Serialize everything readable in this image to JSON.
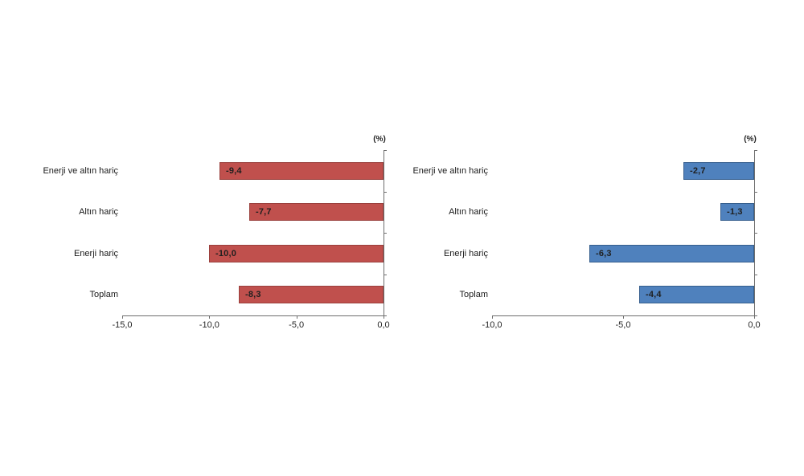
{
  "page": {
    "background_color": "#ffffff"
  },
  "chart_data": [
    {
      "type": "bar",
      "orientation": "horizontal",
      "title": "",
      "unit_label": "(%)",
      "categories": [
        "Enerji ve altın hariç",
        "Altın hariç",
        "Enerji hariç",
        "Toplam"
      ],
      "values": [
        -9.4,
        -7.7,
        -10.0,
        -8.3
      ],
      "value_labels": [
        "-9,4",
        "-7,7",
        "-10,0",
        "-8,3"
      ],
      "xlim": [
        -15,
        0
      ],
      "x_ticks": [
        {
          "v": -15,
          "label": "-15,0"
        },
        {
          "v": -10,
          "label": "-10,0"
        },
        {
          "v": -5,
          "label": "-5,0"
        },
        {
          "v": 0,
          "label": "0,0"
        }
      ],
      "grid": false,
      "legend_position": "none",
      "bar_color": "#c0504d",
      "bar_border_color": "#9a403d"
    },
    {
      "type": "bar",
      "orientation": "horizontal",
      "title": "",
      "unit_label": "(%)",
      "categories": [
        "Enerji ve altın hariç",
        "Altın hariç",
        "Enerji hariç",
        "Toplam"
      ],
      "values": [
        -2.7,
        -1.3,
        -6.3,
        -4.4
      ],
      "value_labels": [
        "-2,7",
        "-1,3",
        "-6,3",
        "-4,4"
      ],
      "xlim": [
        -10,
        0
      ],
      "x_ticks": [
        {
          "v": -10,
          "label": "-10,0"
        },
        {
          "v": -5,
          "label": "-5,0"
        },
        {
          "v": 0,
          "label": "0,0"
        }
      ],
      "grid": false,
      "legend_position": "none",
      "bar_color": "#4f81bd",
      "bar_border_color": "#355e8d"
    }
  ],
  "styles": {
    "axis_color": "#6e6e6e",
    "category_label_color": "#1a1a1a",
    "tick_label_color": "#262626",
    "value_label_color": "#1f1f1f"
  }
}
